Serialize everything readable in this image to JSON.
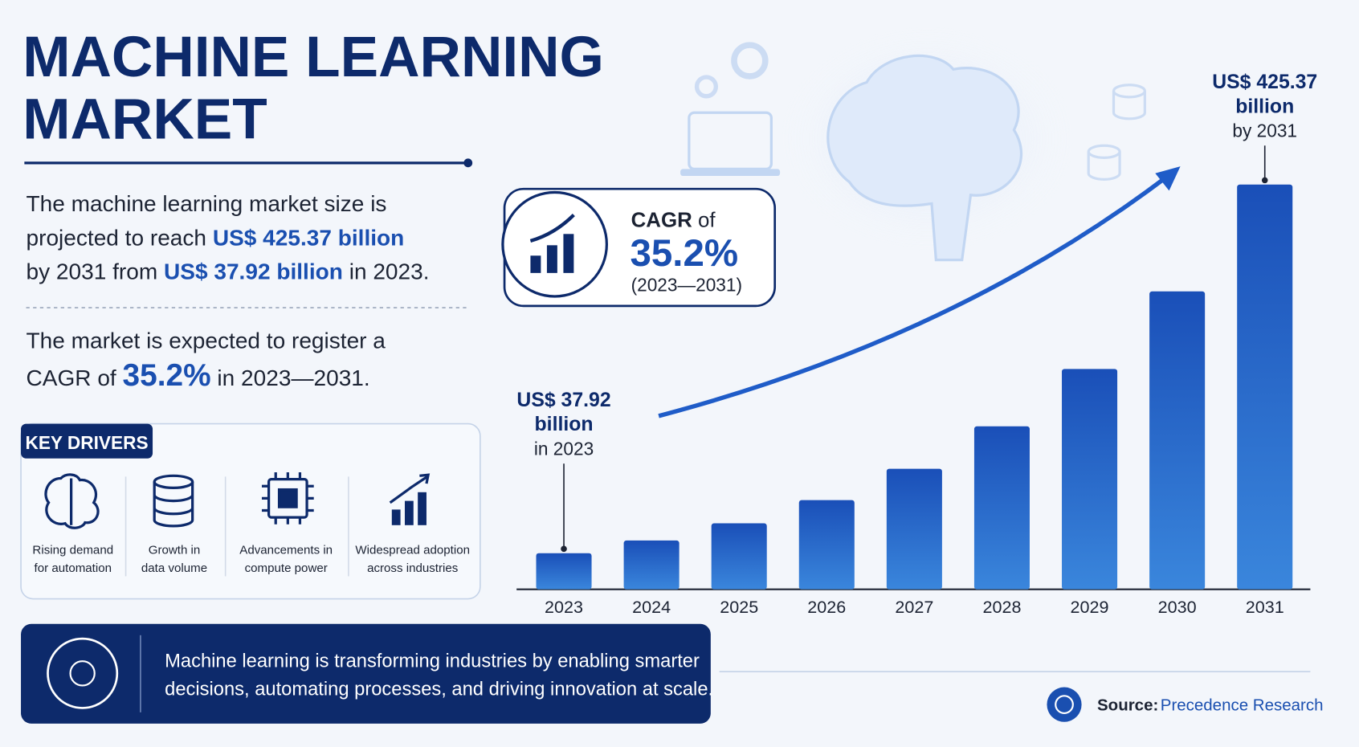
{
  "title_lines": [
    "MACHINE LEARNING",
    "MARKET"
  ],
  "summary": {
    "line1": "The machine learning market size is",
    "line2_a": "projected to reach ",
    "line2_b": "US$ 425.37 billion",
    "line3_a": "by 2031 from ",
    "line3_b": "US$ 37.92 billion",
    "line3_c": " in 2023."
  },
  "cagr_text": {
    "line1": "The market is expected to register a",
    "line2_a": "CAGR of ",
    "line2_b": "35.2%",
    "line2_c": " in 2023—2031."
  },
  "cagr_badge": {
    "label": "CAGR",
    "label_suffix": " of",
    "value": "35.2%",
    "period": "(2023—2031)"
  },
  "key_drivers": {
    "title": "KEY DRIVERS",
    "items": [
      [
        "Rising demand",
        "for automation"
      ],
      [
        "Growth in",
        "data volume"
      ],
      [
        "Advancements in",
        "compute power"
      ],
      [
        "Widespread adoption",
        "across industries"
      ]
    ]
  },
  "banner": [
    "Machine learning is transforming industries by enabling smarter",
    "decisions, automating processes, and driving innovation at scale."
  ],
  "source": {
    "label": "Source:",
    "name": "Precedence Research"
  },
  "chart_data": {
    "type": "bar",
    "categories": [
      "2023",
      "2024",
      "2025",
      "2026",
      "2027",
      "2028",
      "2029",
      "2030",
      "2031"
    ],
    "values": [
      37.92,
      51.27,
      69.31,
      93.71,
      126.7,
      171.3,
      231.6,
      313.12,
      425.37
    ],
    "color": "#1f5cc8",
    "annotations": [
      {
        "index": 0,
        "lines": [
          "US$ 37.92",
          "billion",
          "in 2023"
        ]
      },
      {
        "index": 8,
        "lines": [
          "US$ 425.37",
          "billion",
          "by 2031"
        ]
      }
    ]
  }
}
